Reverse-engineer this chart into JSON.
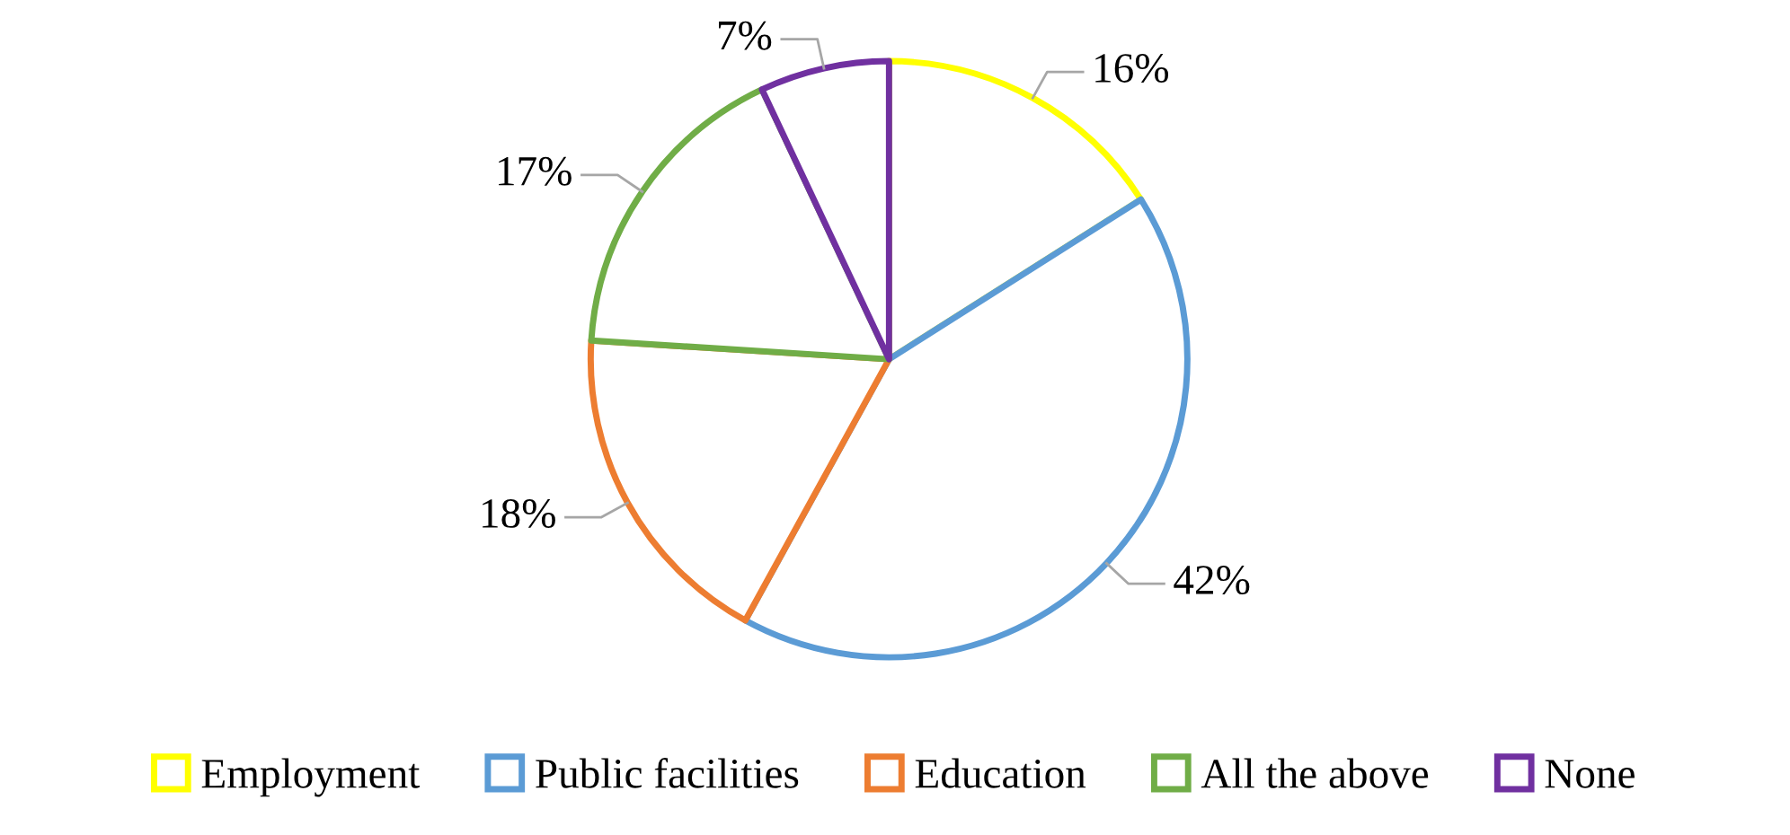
{
  "chart_data": {
    "type": "pie",
    "categories": [
      "Employment",
      "Public facilities",
      "Education",
      "All the above",
      "None"
    ],
    "values": [
      16,
      42,
      18,
      17,
      7
    ],
    "colors": [
      "#ffff00",
      "#5b9bd5",
      "#ed7d31",
      "#70ad47",
      "#7030a0"
    ],
    "value_labels": [
      "16%",
      "42%",
      "18%",
      "17%",
      "7%"
    ],
    "legend": "bottom"
  }
}
